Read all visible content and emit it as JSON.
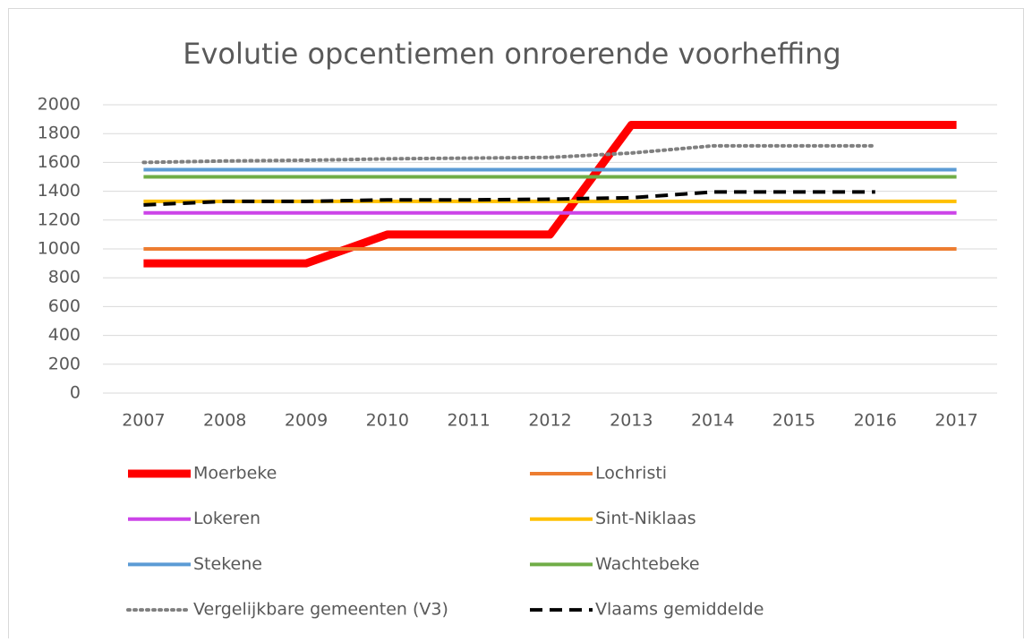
{
  "chart_data": {
    "type": "line",
    "title": "Evolutie opcentiemen onroerende voorheffing",
    "categories": [
      "2007",
      "2008",
      "2009",
      "2010",
      "2011",
      "2012",
      "2013",
      "2014",
      "2015",
      "2016",
      "2017"
    ],
    "ylim": [
      0,
      2000
    ],
    "yticks": [
      0,
      200,
      400,
      600,
      800,
      1000,
      1200,
      1400,
      1600,
      1800,
      2000
    ],
    "grid": true,
    "series": [
      {
        "name": "Moerbeke",
        "color": "#ff0000",
        "width": 9,
        "dash": "solid",
        "values": [
          900,
          900,
          900,
          1100,
          1100,
          1100,
          1860,
          1860,
          1860,
          1860,
          1860
        ]
      },
      {
        "name": "Lochristi",
        "color": "#ed7d31",
        "width": 4,
        "dash": "solid",
        "values": [
          1000,
          1000,
          1000,
          1000,
          1000,
          1000,
          1000,
          1000,
          1000,
          1000,
          1000
        ]
      },
      {
        "name": "Lokeren",
        "color": "#cc44e8",
        "width": 4,
        "dash": "solid",
        "values": [
          1250,
          1250,
          1250,
          1250,
          1250,
          1250,
          1250,
          1250,
          1250,
          1250,
          1250
        ]
      },
      {
        "name": "Sint-Niklaas",
        "color": "#ffc000",
        "width": 4,
        "dash": "solid",
        "values": [
          1330,
          1330,
          1330,
          1330,
          1330,
          1330,
          1330,
          1330,
          1330,
          1330,
          1330
        ]
      },
      {
        "name": "Stekene",
        "color": "#5b9bd5",
        "width": 4,
        "dash": "solid",
        "values": [
          1550,
          1550,
          1550,
          1550,
          1550,
          1550,
          1550,
          1550,
          1550,
          1550,
          1550
        ]
      },
      {
        "name": "Wachtebeke",
        "color": "#70ad47",
        "width": 4,
        "dash": "solid",
        "values": [
          1500,
          1500,
          1500,
          1500,
          1500,
          1500,
          1500,
          1500,
          1500,
          1500,
          1500
        ]
      },
      {
        "name": "Vergelijkbare gemeenten (V3)",
        "color": "#808080",
        "width": 4,
        "dash": "dot",
        "values": [
          1600,
          1610,
          1615,
          1625,
          1630,
          1635,
          1665,
          1715,
          1715,
          1715,
          null
        ]
      },
      {
        "name": "Vlaams gemiddelde",
        "color": "#000000",
        "width": 4,
        "dash": "dash",
        "values": [
          1305,
          1330,
          1330,
          1340,
          1340,
          1345,
          1355,
          1395,
          1395,
          1395,
          null
        ]
      }
    ]
  }
}
